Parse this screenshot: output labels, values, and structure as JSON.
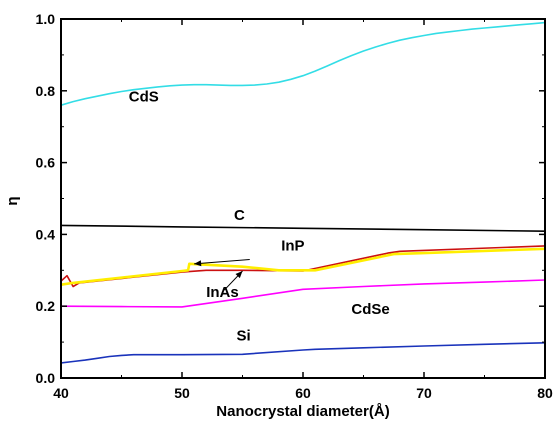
{
  "chart_data": {
    "type": "line",
    "title": "",
    "xlabel": "Nanocrystal diameter(Å)",
    "ylabel": "η",
    "xlim": [
      40,
      80
    ],
    "ylim": [
      0.0,
      1.0
    ],
    "xticks": [
      "40",
      "50",
      "60",
      "70",
      "80"
    ],
    "yticks": [
      "0.0",
      "0.2",
      "0.4",
      "0.6",
      "0.8",
      "1.0"
    ],
    "grid": false,
    "series": [
      {
        "name": "CdS",
        "color": "#33dde6",
        "x": [
          40,
          41,
          42,
          43,
          44,
          45,
          46,
          47,
          48,
          49,
          50,
          51,
          52,
          53,
          54,
          55,
          56,
          57,
          58,
          59,
          60,
          61,
          62,
          63,
          64,
          65,
          66,
          67,
          68,
          69,
          70,
          71,
          72,
          73,
          74,
          75,
          76,
          77,
          78,
          79,
          80
        ],
        "y": [
          0.76,
          0.77,
          0.778,
          0.785,
          0.792,
          0.798,
          0.803,
          0.807,
          0.811,
          0.814,
          0.816,
          0.817,
          0.817,
          0.816,
          0.815,
          0.815,
          0.816,
          0.819,
          0.824,
          0.832,
          0.842,
          0.855,
          0.869,
          0.884,
          0.898,
          0.911,
          0.922,
          0.932,
          0.941,
          0.948,
          0.954,
          0.96,
          0.964,
          0.968,
          0.972,
          0.975,
          0.978,
          0.981,
          0.984,
          0.987,
          0.99
        ]
      },
      {
        "name": "C",
        "color": "#000000",
        "x": [
          40,
          50,
          60,
          70,
          80
        ],
        "y": [
          0.425,
          0.421,
          0.417,
          0.413,
          0.409
        ]
      },
      {
        "name": "InAs",
        "color": "#cc1111",
        "x": [
          40,
          40.5,
          41,
          41.5,
          50,
          52,
          55,
          60,
          67,
          68,
          80
        ],
        "y": [
          0.27,
          0.285,
          0.255,
          0.265,
          0.295,
          0.3,
          0.3,
          0.298,
          0.348,
          0.353,
          0.368
        ]
      },
      {
        "name": "InP",
        "color": "#ffee00",
        "x": [
          40,
          41,
          50,
          50.5,
          50.6,
          55,
          58,
          61,
          67.5,
          70,
          80
        ],
        "y": [
          0.26,
          0.265,
          0.298,
          0.3,
          0.318,
          0.31,
          0.3,
          0.3,
          0.345,
          0.348,
          0.36
        ]
      },
      {
        "name": "CdSe",
        "color": "#ff00ff",
        "x": [
          40,
          45,
          50,
          55,
          60,
          65,
          70,
          75,
          80
        ],
        "y": [
          0.2,
          0.199,
          0.198,
          0.222,
          0.247,
          0.255,
          0.262,
          0.267,
          0.273
        ]
      },
      {
        "name": "Si",
        "color": "#1a33bb",
        "x": [
          40,
          41,
          42,
          43,
          44,
          45,
          46,
          50,
          55,
          60,
          61,
          65,
          70,
          75,
          80
        ],
        "y": [
          0.042,
          0.046,
          0.05,
          0.055,
          0.06,
          0.063,
          0.065,
          0.065,
          0.066,
          0.078,
          0.08,
          0.084,
          0.089,
          0.094,
          0.098
        ]
      }
    ],
    "labels": [
      {
        "text": "CdS",
        "x": 45.6,
        "y": 0.77
      },
      {
        "text": "C",
        "x": 54.3,
        "y": 0.44
      },
      {
        "text": "InP",
        "x": 58.2,
        "y": 0.355
      },
      {
        "text": "InAs",
        "x": 52.0,
        "y": 0.225
      },
      {
        "text": "CdSe",
        "x": 64.0,
        "y": 0.178
      },
      {
        "text": "Si",
        "x": 54.5,
        "y": 0.105
      }
    ],
    "arrows": [
      {
        "from": [
          55.6,
          0.33
        ],
        "to": [
          51.0,
          0.318
        ]
      },
      {
        "from": [
          53.5,
          0.245
        ],
        "to": [
          55.0,
          0.298
        ]
      }
    ]
  }
}
